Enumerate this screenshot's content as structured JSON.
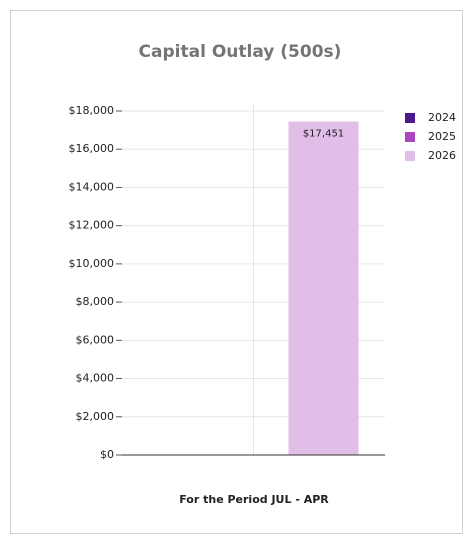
{
  "chart_data": {
    "type": "bar",
    "title": "Capital Outlay (500s)",
    "x_label": "For the Period JUL - APR",
    "categories": [
      null
    ],
    "series": [
      {
        "name": "2024",
        "color": "#4a1a8c",
        "values": [
          null
        ]
      },
      {
        "name": "2025",
        "color": "#ab47bc",
        "values": [
          null
        ]
      },
      {
        "name": "2026",
        "color": "#e1bee7",
        "values": [
          17451
        ],
        "value_labels": [
          "$17,451"
        ]
      }
    ],
    "ylim": [
      0,
      18000
    ],
    "yticks": [
      {
        "value": 0,
        "label": "$0"
      },
      {
        "value": 2000,
        "label": "$2,000"
      },
      {
        "value": 4000,
        "label": "$4,000"
      },
      {
        "value": 6000,
        "label": "$6,000"
      },
      {
        "value": 8000,
        "label": "$8,000"
      },
      {
        "value": 10000,
        "label": "$10,000"
      },
      {
        "value": 12000,
        "label": "$12,000"
      },
      {
        "value": 14000,
        "label": "$14,000"
      },
      {
        "value": 16000,
        "label": "$16,000"
      },
      {
        "value": 18000,
        "label": "$18,000"
      }
    ],
    "grid": true,
    "legend": "right"
  }
}
